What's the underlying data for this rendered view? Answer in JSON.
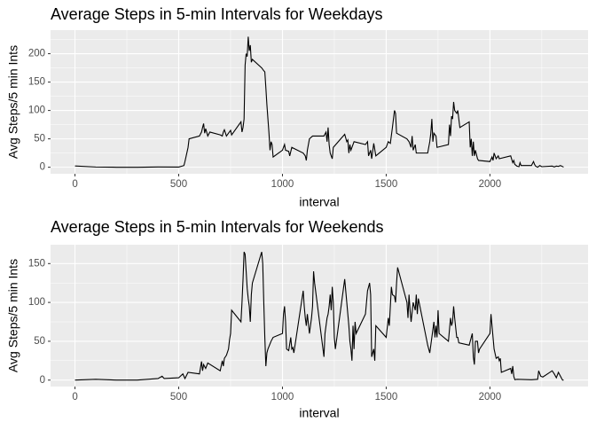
{
  "chart_data": [
    {
      "type": "line",
      "title": "Average Steps in 5-min Intervals for Weekdays",
      "xlabel": "interval",
      "ylabel": "Avg Steps/5 min Ints",
      "color": "#000000",
      "grid": true,
      "xlim": [
        -117.75,
        2472.75
      ],
      "ylim": [
        -11.5,
        241.5
      ],
      "xticks": [
        0,
        500,
        1000,
        1500,
        2000
      ],
      "yticks": [
        0,
        50,
        100,
        150,
        200
      ],
      "x": [
        0,
        100,
        200,
        300,
        400,
        500,
        525,
        530,
        545,
        550,
        600,
        610,
        615,
        620,
        625,
        630,
        640,
        650,
        700,
        710,
        715,
        720,
        730,
        740,
        750,
        755,
        800,
        805,
        810,
        815,
        820,
        825,
        830,
        835,
        840,
        845,
        850,
        855,
        900,
        910,
        915,
        920,
        925,
        930,
        935,
        940,
        945,
        950,
        955,
        1000,
        1010,
        1015,
        1030,
        1035,
        1045,
        1100,
        1110,
        1115,
        1120,
        1130,
        1145,
        1200,
        1210,
        1215,
        1220,
        1225,
        1230,
        1240,
        1245,
        1300,
        1310,
        1315,
        1320,
        1325,
        1330,
        1345,
        1400,
        1410,
        1415,
        1425,
        1430,
        1440,
        1450,
        1500,
        1510,
        1520,
        1530,
        1540,
        1545,
        1550,
        1600,
        1610,
        1620,
        1625,
        1630,
        1640,
        1645,
        1700,
        1710,
        1715,
        1720,
        1725,
        1730,
        1740,
        1745,
        1800,
        1805,
        1810,
        1815,
        1820,
        1825,
        1830,
        1840,
        1845,
        1850,
        1855,
        1900,
        1905,
        1910,
        1915,
        1920,
        1925,
        1930,
        1940,
        1945,
        2000,
        2010,
        2015,
        2020,
        2030,
        2040,
        2045,
        2100,
        2110,
        2115,
        2120,
        2130,
        2140,
        2145,
        2150,
        2200,
        2210,
        2215,
        2220,
        2230,
        2240,
        2250,
        2300,
        2310,
        2320,
        2330,
        2340,
        2355
      ],
      "values": [
        2.3,
        0.4,
        0,
        0,
        0.5,
        0.3,
        3,
        10,
        35,
        50,
        55,
        62,
        70,
        77,
        60,
        68,
        55,
        62,
        57,
        55,
        62,
        66,
        55,
        60,
        65,
        57,
        80,
        62,
        70,
        85,
        180,
        200,
        195,
        230,
        205,
        215,
        185,
        190,
        175,
        170,
        168,
        140,
        110,
        85,
        60,
        30,
        45,
        40,
        18,
        30,
        40,
        30,
        28,
        20,
        35,
        25,
        20,
        12,
        30,
        50,
        55,
        55,
        62,
        45,
        70,
        40,
        25,
        15,
        35,
        58,
        45,
        48,
        25,
        40,
        30,
        45,
        40,
        45,
        20,
        30,
        15,
        42,
        20,
        35,
        45,
        42,
        70,
        100,
        95,
        60,
        50,
        45,
        35,
        55,
        30,
        40,
        25,
        25,
        45,
        60,
        85,
        45,
        60,
        55,
        35,
        40,
        75,
        55,
        90,
        85,
        115,
        100,
        95,
        100,
        85,
        70,
        80,
        35,
        50,
        20,
        45,
        20,
        30,
        15,
        12,
        10,
        18,
        12,
        25,
        15,
        20,
        15,
        20,
        8,
        12,
        5,
        2,
        1,
        8,
        3,
        3,
        10,
        5,
        2,
        0,
        3,
        1,
        2,
        0.5,
        2,
        1.5,
        3,
        0.3
      ]
    },
    {
      "type": "line",
      "title": "Average Steps in 5-min Intervals for Weekends",
      "xlabel": "interval",
      "ylabel": "Avg Steps/5 min Ints",
      "color": "#000000",
      "grid": true,
      "xlim": [
        -117.75,
        2472.75
      ],
      "ylim": [
        -8.3,
        174.3
      ],
      "xticks": [
        0,
        500,
        1000,
        1500,
        2000
      ],
      "yticks": [
        0,
        50,
        100,
        150
      ],
      "x": [
        0,
        100,
        200,
        300,
        400,
        420,
        430,
        500,
        520,
        530,
        545,
        600,
        610,
        615,
        620,
        630,
        640,
        700,
        710,
        715,
        720,
        730,
        740,
        745,
        750,
        755,
        800,
        805,
        810,
        815,
        820,
        825,
        830,
        835,
        840,
        845,
        850,
        855,
        900,
        905,
        910,
        915,
        920,
        925,
        930,
        945,
        955,
        1000,
        1005,
        1010,
        1015,
        1020,
        1030,
        1040,
        1045,
        1050,
        1055,
        1100,
        1105,
        1110,
        1115,
        1120,
        1130,
        1140,
        1145,
        1150,
        1155,
        1200,
        1205,
        1215,
        1220,
        1225,
        1230,
        1235,
        1240,
        1245,
        1250,
        1255,
        1300,
        1305,
        1310,
        1315,
        1320,
        1325,
        1330,
        1335,
        1340,
        1345,
        1350,
        1355,
        1400,
        1410,
        1415,
        1420,
        1425,
        1430,
        1440,
        1445,
        1450,
        1500,
        1510,
        1515,
        1520,
        1525,
        1530,
        1540,
        1545,
        1550,
        1555,
        1600,
        1605,
        1610,
        1615,
        1620,
        1630,
        1640,
        1645,
        1650,
        1655,
        1700,
        1710,
        1720,
        1730,
        1735,
        1740,
        1745,
        1750,
        1755,
        1800,
        1810,
        1815,
        1820,
        1825,
        1830,
        1840,
        1845,
        1850,
        1900,
        1910,
        1915,
        1920,
        1925,
        1930,
        1940,
        1945,
        1950,
        2000,
        2005,
        2010,
        2015,
        2020,
        2030,
        2040,
        2045,
        2050,
        2055,
        2100,
        2105,
        2110,
        2115,
        2120,
        2130,
        2200,
        2230,
        2235,
        2245,
        2255,
        2300,
        2310,
        2320,
        2330,
        2340,
        2350,
        2355
      ],
      "values": [
        0,
        1,
        0,
        0,
        2,
        5,
        2,
        3,
        8,
        2,
        10,
        8,
        24,
        12,
        20,
        15,
        22,
        12,
        25,
        18,
        28,
        32,
        40,
        52,
        60,
        90,
        75,
        100,
        130,
        165,
        162,
        140,
        118,
        105,
        95,
        75,
        110,
        125,
        165,
        150,
        100,
        55,
        18,
        35,
        40,
        50,
        55,
        60,
        85,
        95,
        75,
        40,
        38,
        55,
        40,
        42,
        35,
        115,
        95,
        80,
        70,
        85,
        60,
        80,
        95,
        140,
        125,
        30,
        60,
        80,
        85,
        95,
        110,
        90,
        120,
        100,
        55,
        40,
        130,
        115,
        100,
        85,
        70,
        50,
        40,
        25,
        70,
        40,
        75,
        60,
        85,
        115,
        120,
        125,
        110,
        30,
        40,
        25,
        70,
        55,
        80,
        70,
        95,
        120,
        110,
        108,
        100,
        125,
        145,
        100,
        80,
        110,
        90,
        75,
        100,
        90,
        110,
        85,
        105,
        45,
        35,
        55,
        75,
        55,
        70,
        55,
        90,
        60,
        50,
        80,
        70,
        75,
        95,
        80,
        55,
        55,
        48,
        45,
        55,
        60,
        30,
        20,
        50,
        50,
        35,
        40,
        60,
        85,
        70,
        55,
        40,
        28,
        30,
        25,
        28,
        10,
        15,
        8,
        18,
        5,
        0.5,
        1,
        0.5,
        1,
        12,
        5,
        4,
        12,
        8,
        3,
        10,
        5,
        0,
        0
      ]
    }
  ]
}
